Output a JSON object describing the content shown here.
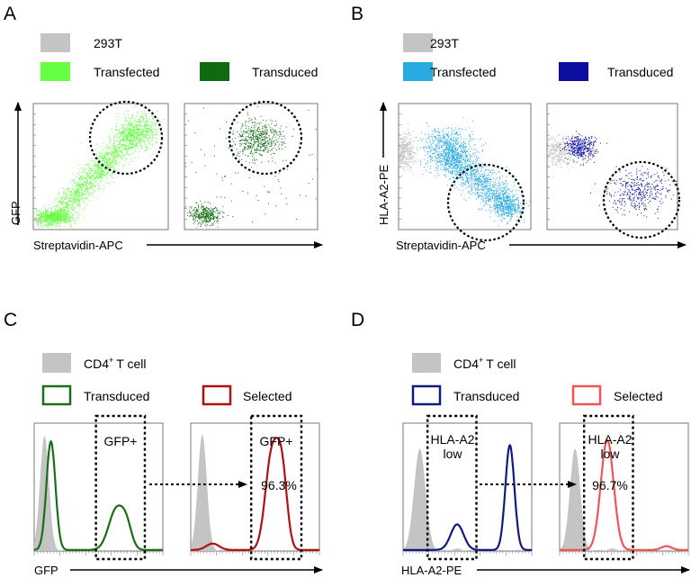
{
  "panels": {
    "A": {
      "label": "A",
      "legend": [
        "293T",
        "Transfected",
        "Transduced"
      ],
      "y_label": "GFP",
      "x_label": "Streptavidin-APC"
    },
    "B": {
      "label": "B",
      "legend": [
        "293T",
        "Transfected",
        "Transduced"
      ],
      "y_label": "HLA-A2-PE",
      "x_label": "Streptavidin-APC"
    },
    "C": {
      "label": "C",
      "legend": [
        "CD4",
        "+",
        "T cell",
        "Transduced",
        "Selected"
      ],
      "x_label": "GFP",
      "gate1": "GFP+",
      "gate2": "GFP+",
      "percent": "96.3%"
    },
    "D": {
      "label": "D",
      "legend": [
        "CD4",
        "+",
        "T cell",
        "Transduced",
        "Selected"
      ],
      "x_label": "HLA-A2-PE",
      "gate1": [
        "HLA-A2",
        "low"
      ],
      "gate2": [
        "HLA-A2",
        "low"
      ],
      "percent": "96.7%"
    }
  },
  "colors": {
    "gray": "#c4c4c4",
    "transfected_green": "#66ff44",
    "transduced_green": "#0f6b12",
    "transfected_blue": "#29abe2",
    "transduced_blue": "#0d0da0",
    "hist_green": "#1a6e1a",
    "hist_red": "#b01010",
    "hist_navy": "#111a80",
    "hist_pink": "#ef5555"
  },
  "chart_data": [
    {
      "id": "A1",
      "type": "scatter",
      "xlabel": "Streptavidin-APC",
      "ylabel": "GFP",
      "xlim": [
        0,
        100
      ],
      "ylim": [
        0,
        100
      ],
      "clusters": [
        {
          "color": "#c4c4c4",
          "cx": 4,
          "cy": 8,
          "sx": 2,
          "sy": 3,
          "n": 60
        },
        {
          "color": "#66ff44",
          "cx": 15,
          "cy": 10,
          "sx": 7,
          "sy": 3,
          "n": 700
        },
        {
          "color": "#66ff44",
          "band": [
            [
              20,
              15
            ],
            [
              75,
              78
            ]
          ],
          "spread": 6,
          "n": 1400
        },
        {
          "color": "#66ff44",
          "cx": 78,
          "cy": 78,
          "sx": 7,
          "sy": 7,
          "n": 500
        }
      ]
    },
    {
      "id": "A2",
      "type": "scatter",
      "xlabel": "Streptavidin-APC",
      "ylabel": "GFP",
      "xlim": [
        0,
        100
      ],
      "ylim": [
        0,
        100
      ],
      "clusters": [
        {
          "color": "#0f6b12",
          "cx": 15,
          "cy": 12,
          "sx": 6,
          "sy": 4,
          "n": 350
        },
        {
          "color": "#0f6b12",
          "cx": 55,
          "cy": 72,
          "sx": 9,
          "sy": 7,
          "n": 500
        },
        {
          "color": "#0f6b12",
          "cx": 50,
          "cy": 50,
          "sx": 30,
          "sy": 30,
          "n": 120
        }
      ]
    },
    {
      "id": "B1",
      "type": "scatter",
      "xlabel": "Streptavidin-APC",
      "ylabel": "HLA-A2-PE",
      "xlim": [
        0,
        100
      ],
      "ylim": [
        0,
        100
      ],
      "clusters": [
        {
          "color": "#c4c4c4",
          "cx": 4,
          "cy": 62,
          "sx": 4,
          "sy": 7,
          "n": 500
        },
        {
          "color": "#29abe2",
          "cx": 38,
          "cy": 63,
          "sx": 9,
          "sy": 8,
          "n": 800
        },
        {
          "color": "#29abe2",
          "band": [
            [
              38,
              55
            ],
            [
              85,
              20
            ]
          ],
          "spread": 7,
          "n": 1100
        },
        {
          "color": "#29abe2",
          "cx": 82,
          "cy": 18,
          "sx": 6,
          "sy": 5,
          "n": 300
        }
      ]
    },
    {
      "id": "B2",
      "type": "scatter",
      "xlabel": "Streptavidin-APC",
      "ylabel": "HLA-A2-PE",
      "xlim": [
        0,
        100
      ],
      "ylim": [
        0,
        100
      ],
      "clusters": [
        {
          "color": "#c4c4c4",
          "cx": 8,
          "cy": 62,
          "sx": 5,
          "sy": 6,
          "n": 350
        },
        {
          "color": "#0d0da0",
          "cx": 25,
          "cy": 65,
          "sx": 6,
          "sy": 5,
          "n": 400
        },
        {
          "color": "#0d0da0",
          "cx": 70,
          "cy": 30,
          "sx": 12,
          "sy": 8,
          "n": 400
        }
      ]
    },
    {
      "id": "C1",
      "type": "line",
      "xlabel": "GFP",
      "xlim": [
        0,
        100
      ],
      "ylim": [
        0,
        100
      ],
      "gate": [
        48,
        86
      ],
      "series": [
        {
          "name": "CD4+ T cell",
          "fill": true,
          "color": "#c4c4c4",
          "peaks": [
            [
              8,
              90,
              3.5
            ]
          ]
        },
        {
          "name": "Transduced",
          "fill": false,
          "color": "#1a6e1a",
          "peaks": [
            [
              13,
              85,
              3.5
            ],
            [
              64,
              32,
              6
            ],
            [
              72,
              14,
              4
            ]
          ]
        }
      ]
    },
    {
      "id": "C2",
      "type": "line",
      "xlabel": "GFP",
      "xlim": [
        0,
        100
      ],
      "ylim": [
        0,
        100
      ],
      "gate": [
        47,
        86
      ],
      "percent": "96.3%",
      "series": [
        {
          "name": "CD4+ T cell",
          "fill": true,
          "color": "#c4c4c4",
          "peaks": [
            [
              9,
              91,
              3.5
            ]
          ]
        },
        {
          "name": "Selected",
          "fill": false,
          "color": "#b01010",
          "peaks": [
            [
              63,
              74,
              5
            ],
            [
              71,
              56,
              4
            ],
            [
              17,
              5,
              5
            ]
          ]
        }
      ]
    },
    {
      "id": "D1",
      "type": "line",
      "xlabel": "HLA-A2-PE",
      "xlim": [
        0,
        100
      ],
      "ylim": [
        0,
        100
      ],
      "gate": [
        19,
        57
      ],
      "series": [
        {
          "name": "CD4+ T cell",
          "fill": true,
          "color": "#c4c4c4",
          "peaks": [
            [
              13,
              80,
              4.5
            ],
            [
              42,
              2,
              3
            ]
          ]
        },
        {
          "name": "Transduced",
          "fill": false,
          "color": "#111a80",
          "peaks": [
            [
              42,
              20,
              5
            ],
            [
              83,
              82,
              3.5
            ]
          ]
        }
      ]
    },
    {
      "id": "D2",
      "type": "line",
      "xlabel": "HLA-A2-PE",
      "xlim": [
        0,
        100
      ],
      "ylim": [
        0,
        100
      ],
      "gate": [
        19,
        57
      ],
      "percent": "96.7%",
      "series": [
        {
          "name": "CD4+ T cell",
          "fill": true,
          "color": "#c4c4c4",
          "peaks": [
            [
              12,
              80,
              4
            ],
            [
              41,
              2,
              3
            ]
          ]
        },
        {
          "name": "Selected",
          "fill": false,
          "color": "#ef5555",
          "peaks": [
            [
              37,
              86,
              5
            ],
            [
              83,
              3,
              4
            ]
          ]
        }
      ]
    }
  ]
}
